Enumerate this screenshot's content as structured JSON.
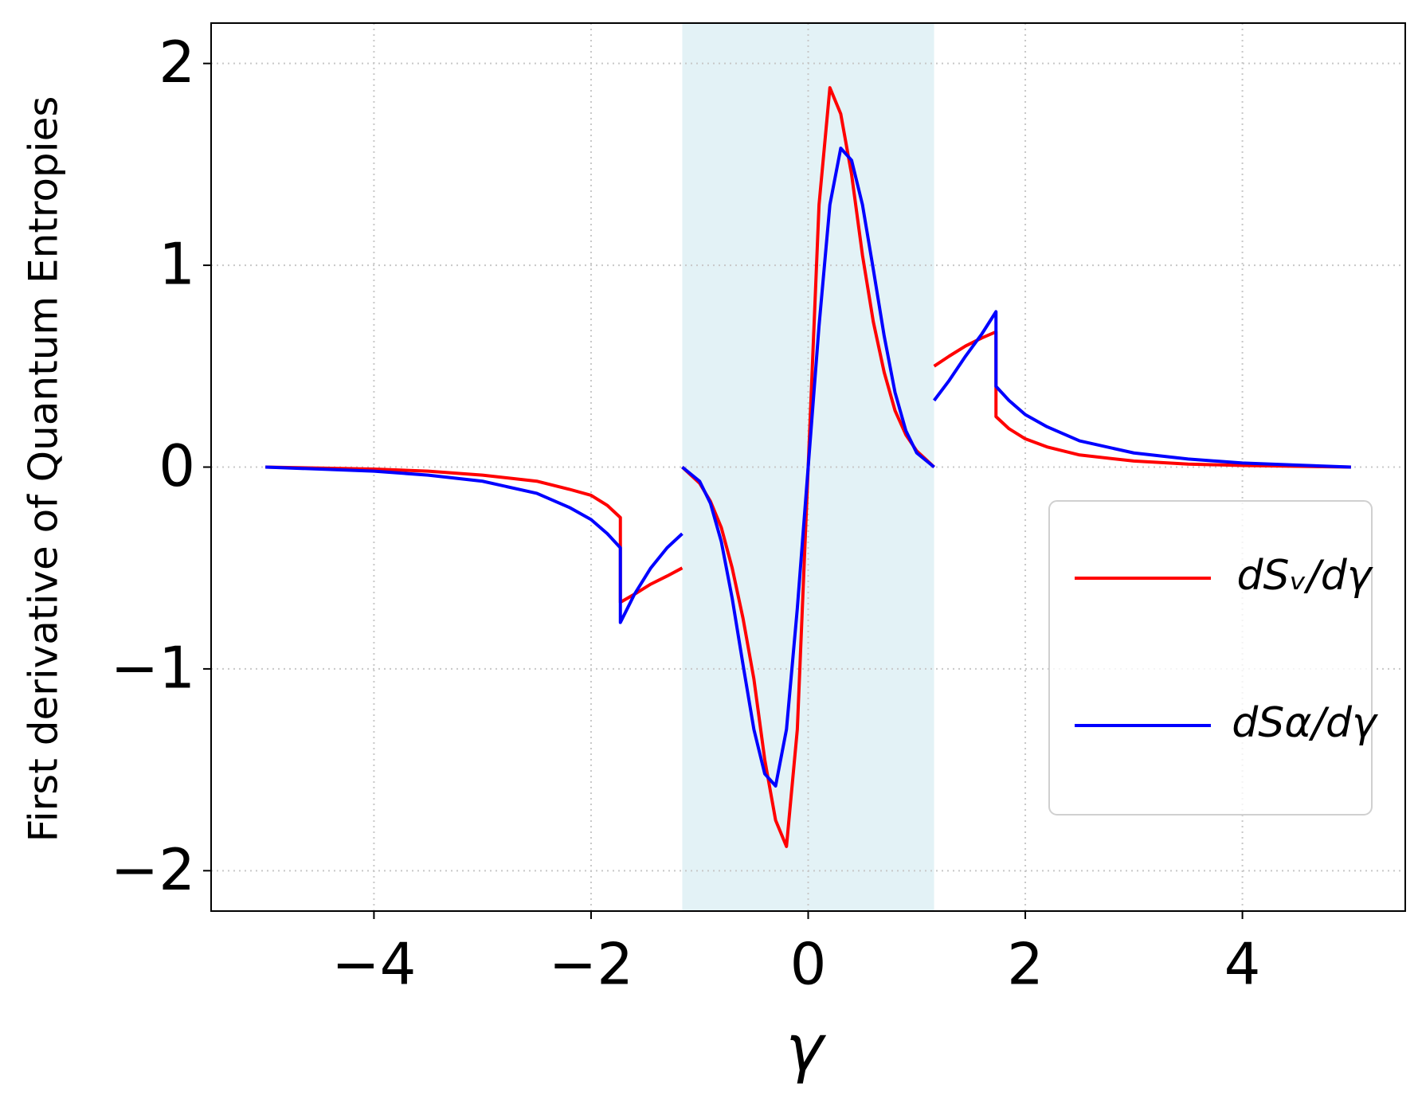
{
  "chart_data": {
    "type": "line",
    "xlabel": "γ",
    "ylabel": "First derivative of Quantum Entropies",
    "x": [
      -5,
      -4.5,
      -4,
      -3.5,
      -3,
      -2.5,
      -2.2,
      -2,
      -1.85,
      -1.73,
      -1.73,
      -1.6,
      -1.45,
      -1.3,
      -1.16,
      -1.16,
      -1.16,
      -1.0,
      -0.9,
      -0.8,
      -0.7,
      -0.6,
      -0.5,
      -0.4,
      -0.3,
      -0.2,
      -0.1,
      0,
      0.1,
      0.2,
      0.3,
      0.4,
      0.5,
      0.6,
      0.7,
      0.8,
      0.9,
      1.0,
      1.16,
      1.16,
      1.16,
      1.3,
      1.45,
      1.6,
      1.73,
      1.73,
      1.85,
      2,
      2.2,
      2.5,
      3,
      3.5,
      4,
      4.5,
      5
    ],
    "series": [
      {
        "name": "dSᵥ/dγ",
        "color": "#ff0000",
        "values": [
          0,
          -0.005,
          -0.01,
          -0.02,
          -0.04,
          -0.07,
          -0.11,
          -0.14,
          -0.19,
          -0.25,
          -0.67,
          -0.63,
          -0.58,
          -0.54,
          -0.5,
          null,
          0,
          -0.08,
          -0.17,
          -0.3,
          -0.5,
          -0.75,
          -1.05,
          -1.45,
          -1.75,
          -1.88,
          -1.3,
          0,
          1.3,
          1.88,
          1.75,
          1.45,
          1.05,
          0.72,
          0.47,
          0.28,
          0.16,
          0.08,
          0,
          null,
          0.5,
          0.55,
          0.6,
          0.64,
          0.67,
          0.25,
          0.19,
          0.14,
          0.1,
          0.06,
          0.03,
          0.015,
          0.008,
          0.004,
          0
        ]
      },
      {
        "name": "dSα/dγ",
        "color": "#0000ff",
        "values": [
          0,
          -0.01,
          -0.02,
          -0.04,
          -0.07,
          -0.13,
          -0.2,
          -0.26,
          -0.33,
          -0.4,
          -0.77,
          -0.63,
          -0.5,
          -0.4,
          -0.33,
          null,
          0,
          -0.07,
          -0.18,
          -0.37,
          -0.65,
          -0.98,
          -1.3,
          -1.52,
          -1.58,
          -1.3,
          -0.7,
          0,
          0.7,
          1.3,
          1.58,
          1.52,
          1.3,
          0.98,
          0.65,
          0.37,
          0.18,
          0.07,
          0,
          null,
          0.33,
          0.43,
          0.55,
          0.66,
          0.77,
          0.4,
          0.33,
          0.26,
          0.2,
          0.13,
          0.07,
          0.04,
          0.02,
          0.01,
          0
        ]
      }
    ],
    "shaded_region": [
      -1.16,
      1.16
    ],
    "shaded_color": "#e3f2f6",
    "xlim": [
      -5.5,
      5.5
    ],
    "ylim": [
      -2.2,
      2.2
    ],
    "xticks": [
      {
        "value": -4,
        "label": "−4"
      },
      {
        "value": -2,
        "label": "−2"
      },
      0,
      2,
      4
    ],
    "yticks": [
      {
        "value": -2,
        "label": "−2"
      },
      {
        "value": -1,
        "label": "−1"
      },
      0,
      1,
      2
    ],
    "grid": true,
    "legend": "lower right"
  }
}
